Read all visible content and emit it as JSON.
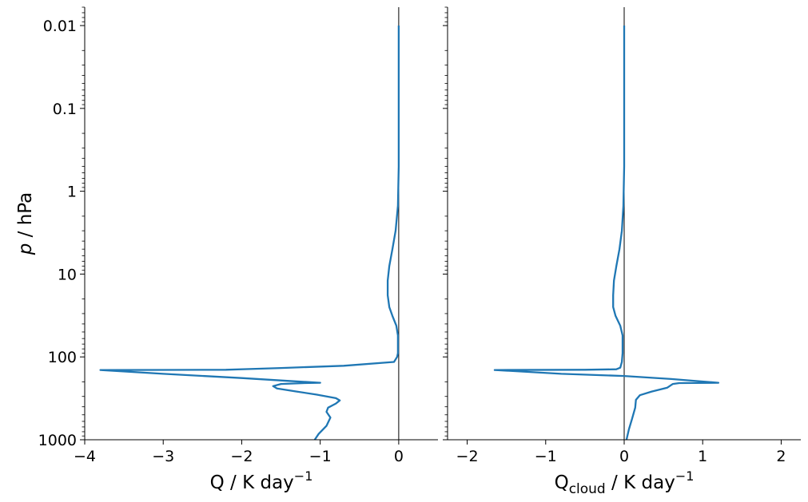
{
  "chart_data": [
    {
      "type": "line",
      "xlabel": "Q / K day⁻¹",
      "ylabel": "p / hPa",
      "y_scale": "log",
      "y_inverted": true,
      "xlim": [
        -4,
        0.5
      ],
      "ylim": [
        1000,
        0.006
      ],
      "x_ticks": [
        -4,
        -3,
        -2,
        -1,
        0
      ],
      "x_tick_labels": [
        "−4",
        "−3",
        "−2",
        "−1",
        "0"
      ],
      "y_ticks": [
        0.01,
        0.1,
        1,
        10,
        100,
        1000
      ],
      "y_tick_labels": [
        "0.01",
        "0.1",
        "1",
        "10",
        "100",
        "1000"
      ],
      "zero_line": true,
      "grid": false,
      "series": [
        {
          "color": "#1f77b4",
          "points": [
            [
              0,
              0.01
            ],
            [
              0,
              0.1
            ],
            [
              0,
              0.5
            ],
            [
              -0.01,
              1.5
            ],
            [
              -0.04,
              3
            ],
            [
              -0.08,
              5
            ],
            [
              -0.12,
              8
            ],
            [
              -0.14,
              12
            ],
            [
              -0.14,
              18
            ],
            [
              -0.12,
              25
            ],
            [
              -0.08,
              32
            ],
            [
              -0.03,
              42
            ],
            [
              -0.01,
              55
            ],
            [
              -0.01,
              70
            ],
            [
              -0.01,
              90
            ],
            [
              -0.02,
              100
            ],
            [
              -0.06,
              115
            ],
            [
              -0.7,
              128
            ],
            [
              -1.5,
              136
            ],
            [
              -1.9,
              140
            ],
            [
              -2.2,
              143
            ],
            [
              -3.0,
              143.5
            ],
            [
              -3.8,
              144
            ],
            [
              -3.0,
              160
            ],
            [
              -2.0,
              180
            ],
            [
              -1.4,
              195
            ],
            [
              -1.0,
              205
            ],
            [
              -1.2,
              207
            ],
            [
              -1.5,
              212
            ],
            [
              -1.6,
              225
            ],
            [
              -1.55,
              240
            ],
            [
              -1.3,
              262
            ],
            [
              -1.05,
              285
            ],
            [
              -0.8,
              315
            ],
            [
              -0.75,
              335
            ],
            [
              -0.8,
              365
            ],
            [
              -0.9,
              410
            ],
            [
              -0.92,
              460
            ],
            [
              -0.87,
              540
            ],
            [
              -0.92,
              680
            ],
            [
              -1.02,
              850
            ],
            [
              -1.07,
              1000
            ]
          ]
        }
      ]
    },
    {
      "type": "line",
      "xlabel": "Qcloud / K day⁻¹",
      "xlabel_base": "Q",
      "xlabel_sub": "cloud",
      "xlabel_rest": " / K day",
      "xlabel_sup": "−1",
      "y_scale": "log",
      "y_inverted": true,
      "xlim": [
        -2.25,
        2.25
      ],
      "ylim": [
        1000,
        0.006
      ],
      "x_ticks": [
        -2,
        -1,
        0,
        1,
        2
      ],
      "x_tick_labels": [
        "−2",
        "−1",
        "0",
        "1",
        "2"
      ],
      "y_ticks": [
        0.01,
        0.1,
        1,
        10,
        100,
        1000
      ],
      "zero_line": true,
      "grid": false,
      "series": [
        {
          "color": "#1f77b4",
          "points": [
            [
              0,
              0.01
            ],
            [
              0,
              0.1
            ],
            [
              0,
              0.5
            ],
            [
              -0.01,
              1.5
            ],
            [
              -0.03,
              3
            ],
            [
              -0.06,
              5
            ],
            [
              -0.1,
              8
            ],
            [
              -0.13,
              12
            ],
            [
              -0.14,
              18
            ],
            [
              -0.14,
              25
            ],
            [
              -0.11,
              32
            ],
            [
              -0.05,
              42
            ],
            [
              -0.02,
              55
            ],
            [
              -0.02,
              70
            ],
            [
              -0.02,
              90
            ],
            [
              -0.03,
              115
            ],
            [
              -0.05,
              135
            ],
            [
              -0.1,
              141
            ],
            [
              -0.5,
              143
            ],
            [
              -1.65,
              144
            ],
            [
              -0.8,
              160
            ],
            [
              0.0,
              170
            ],
            [
              0.6,
              185
            ],
            [
              1.2,
              205
            ],
            [
              0.7,
              207
            ],
            [
              0.62,
              212
            ],
            [
              0.55,
              235
            ],
            [
              0.35,
              262
            ],
            [
              0.2,
              290
            ],
            [
              0.15,
              330
            ],
            [
              0.14,
              410
            ],
            [
              0.1,
              560
            ],
            [
              0.06,
              750
            ],
            [
              0.03,
              1000
            ]
          ]
        }
      ]
    }
  ],
  "labels": {
    "ylabel_italic": "p",
    "ylabel_rest": " / hPa",
    "x1_base": "Q / K day",
    "x1_sup": "−1"
  }
}
